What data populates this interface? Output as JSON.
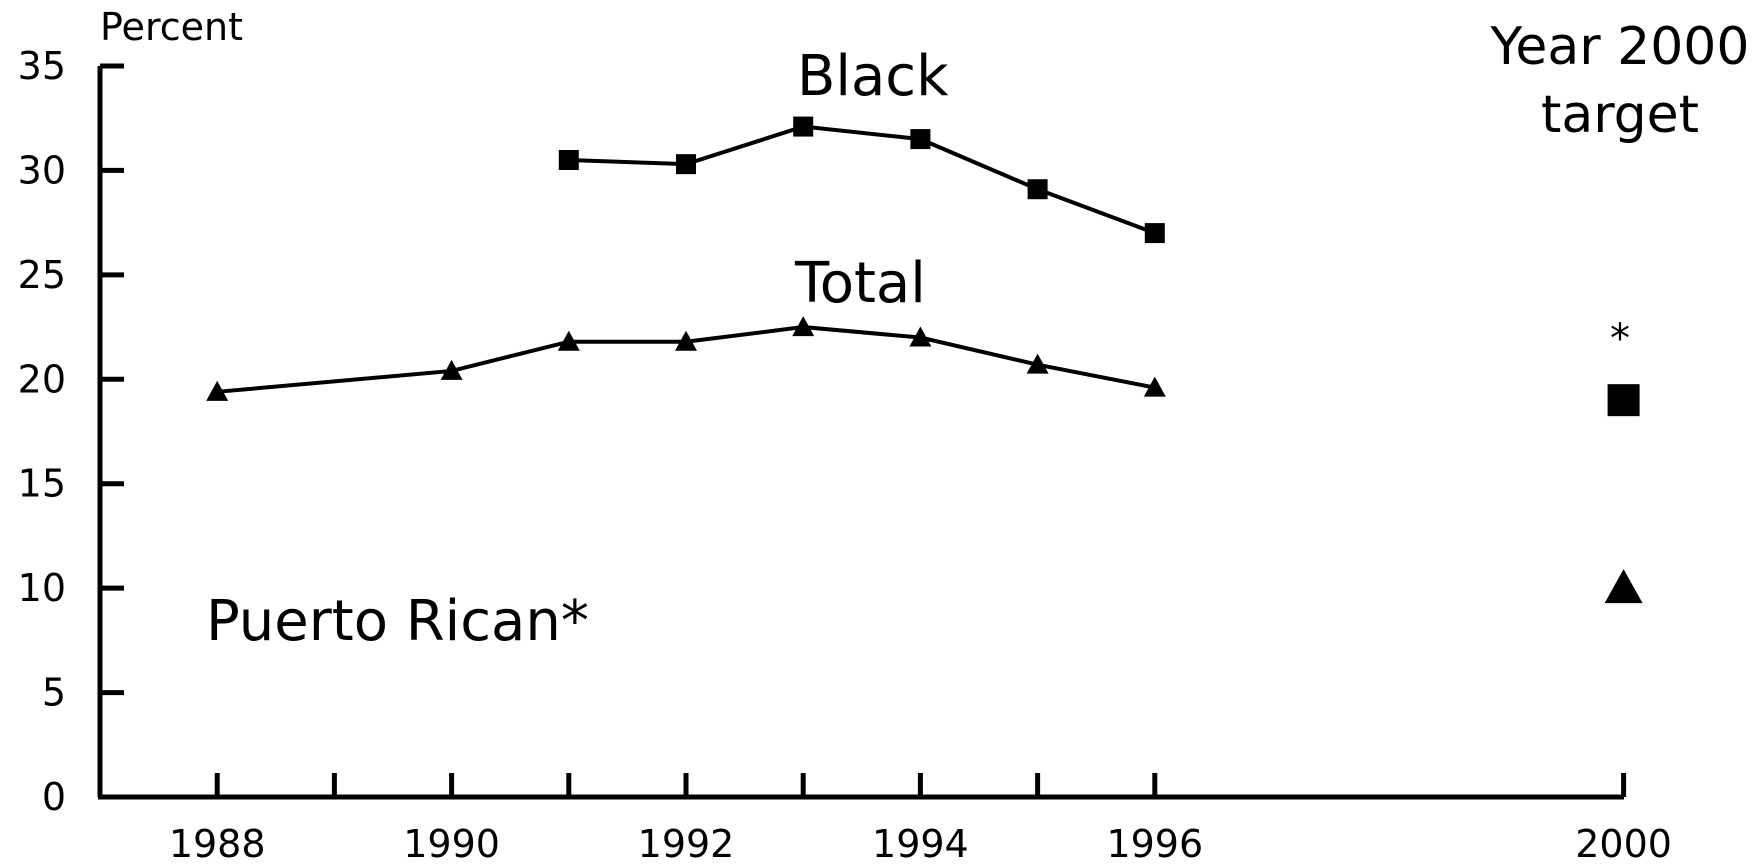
{
  "chart_data": {
    "type": "line",
    "ylabel": "Percent",
    "ylim": [
      0,
      35
    ],
    "yticks": [
      "0",
      "5",
      "10",
      "15",
      "20",
      "25",
      "30",
      "35"
    ],
    "xlim": [
      1987,
      2000
    ],
    "xtick_labels": [
      "1988",
      "1990",
      "1992",
      "1994",
      "1996",
      "2000"
    ],
    "target_heading": {
      "line1": "Year 2000",
      "line2": "target"
    },
    "target_star": "*",
    "series": [
      {
        "name": "Black",
        "marker": "square",
        "x": [
          1991,
          1992,
          1993,
          1994,
          1995,
          1996
        ],
        "values": [
          30.5,
          30.3,
          32.1,
          31.5,
          29.1,
          27.0
        ],
        "target": 19.0
      },
      {
        "name": "Total",
        "marker": "triangle",
        "x": [
          1988,
          1990,
          1991,
          1992,
          1993,
          1994,
          1995,
          1996
        ],
        "values": [
          19.4,
          20.4,
          21.8,
          21.8,
          22.5,
          22.0,
          20.7,
          19.6
        ],
        "target": 10.0
      },
      {
        "name": "Puerto Rican*",
        "marker": "none",
        "x": [],
        "values": []
      }
    ]
  }
}
